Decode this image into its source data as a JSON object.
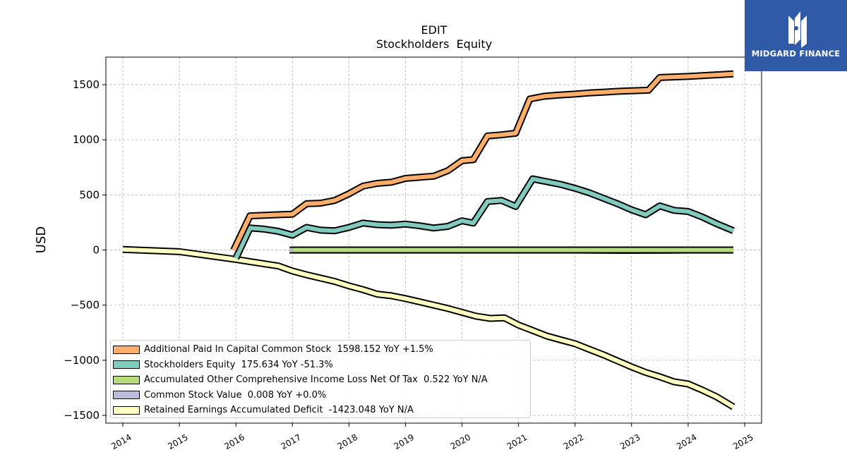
{
  "logo": {
    "text": "MIDGARD FINANCE",
    "color": "#2f5aa8"
  },
  "chart_data": {
    "type": "line",
    "title": "EDIT",
    "subtitle": "Stockholders  Equity",
    "xlabel": "",
    "ylabel": "USD",
    "xlim": [
      2013.7,
      2025.3
    ],
    "ylim": [
      -1570,
      1750
    ],
    "grid": true,
    "legend_position": "lower-left",
    "x_ticks": [
      "2014",
      "2015",
      "2016",
      "2017",
      "2018",
      "2019",
      "2020",
      "2021",
      "2022",
      "2023",
      "2024",
      "2025"
    ],
    "y_ticks": [
      -1500,
      -1000,
      -500,
      0,
      500,
      1000,
      1500
    ],
    "y_tick_labels": [
      "−1500",
      "−1000",
      "−500",
      "0",
      "500",
      "1000",
      "1500"
    ],
    "series": [
      {
        "name": "Additional Paid In Capital Common Stock",
        "legend_label": "Additional Paid In Capital Common Stock  1598.152 YoY +1.5%",
        "color": "#fdae6b",
        "x": [
          2015.96,
          2016.25,
          2016.75,
          2017.0,
          2017.25,
          2017.5,
          2017.75,
          2018.0,
          2018.25,
          2018.5,
          2018.75,
          2019.0,
          2019.25,
          2019.5,
          2019.75,
          2020.0,
          2020.2,
          2020.45,
          2020.7,
          2020.95,
          2021.2,
          2021.45,
          2021.7,
          2022.0,
          2022.25,
          2022.5,
          2022.75,
          2023.0,
          2023.3,
          2023.5,
          2023.75,
          2024.0,
          2024.25,
          2024.8
        ],
        "values": [
          -2,
          310,
          320,
          325,
          420,
          425,
          450,
          510,
          580,
          605,
          615,
          650,
          660,
          670,
          720,
          810,
          820,
          1035,
          1045,
          1060,
          1370,
          1395,
          1405,
          1415,
          1425,
          1432,
          1440,
          1445,
          1450,
          1565,
          1570,
          1575,
          1582,
          1598
        ]
      },
      {
        "name": "Stockholders Equity",
        "legend_label": "Stockholders Equity  175.634 YoY -51.3%",
        "color": "#80cbbd",
        "x": [
          2016.0,
          2016.25,
          2016.5,
          2016.75,
          2017.0,
          2017.25,
          2017.5,
          2017.75,
          2018.0,
          2018.25,
          2018.5,
          2018.75,
          2019.0,
          2019.25,
          2019.5,
          2019.75,
          2020.0,
          2020.2,
          2020.45,
          2020.7,
          2020.95,
          2021.25,
          2021.5,
          2021.75,
          2022.0,
          2022.25,
          2022.5,
          2022.75,
          2023.0,
          2023.25,
          2023.5,
          2023.75,
          2024.0,
          2024.25,
          2024.5,
          2024.8
        ],
        "values": [
          -75,
          200,
          190,
          170,
          135,
          205,
          180,
          175,
          205,
          245,
          230,
          225,
          235,
          220,
          200,
          215,
          265,
          245,
          440,
          450,
          395,
          645,
          620,
          595,
          560,
          520,
          470,
          420,
          365,
          320,
          400,
          360,
          350,
          300,
          240,
          176
        ]
      },
      {
        "name": "Accumulated Other Comprehensive Income Loss Net Of Tax",
        "legend_label": "Accumulated Other Comprehensive Income Loss Net Of Tax  0.522 YoY N/A",
        "color": "#b7dc7d",
        "x": [
          2017.0,
          2018.0,
          2019.0,
          2020.0,
          2021.0,
          2022.0,
          2023.0,
          2024.0,
          2024.8
        ],
        "values": [
          0.5,
          0.5,
          0.5,
          0.5,
          0.5,
          0.5,
          0.5,
          0.5,
          0.5
        ]
      },
      {
        "name": "Common Stock Value",
        "legend_label": "Common Stock Value  0.008 YoY +0.0%",
        "color": "#bcbddc",
        "x": [
          2016.95,
          2018.0,
          2019.0,
          2020.0,
          2021.0,
          2022.0,
          2022.75,
          2023.5,
          2024.0,
          2024.8
        ],
        "values": [
          0,
          0,
          0,
          0,
          0,
          0,
          -3,
          -2,
          0,
          0
        ]
      },
      {
        "name": "Retained Earnings Accumulated Deficit",
        "legend_label": "Retained Earnings Accumulated Deficit  -1423.048 YoY N/A",
        "color": "#ffffbf",
        "x": [
          2014.0,
          2015.0,
          2016.0,
          2016.25,
          2016.5,
          2016.75,
          2017.0,
          2017.25,
          2017.5,
          2017.75,
          2018.0,
          2018.25,
          2018.5,
          2018.75,
          2019.0,
          2019.25,
          2019.5,
          2019.75,
          2020.0,
          2020.25,
          2020.5,
          2020.75,
          2021.0,
          2021.25,
          2021.5,
          2021.75,
          2022.0,
          2022.25,
          2022.5,
          2022.75,
          2023.0,
          2023.25,
          2023.5,
          2023.75,
          2024.0,
          2024.25,
          2024.5,
          2024.8
        ],
        "values": [
          5,
          -15,
          -85,
          -105,
          -125,
          -145,
          -190,
          -225,
          -255,
          -285,
          -325,
          -360,
          -400,
          -415,
          -440,
          -470,
          -500,
          -530,
          -565,
          -600,
          -620,
          -615,
          -680,
          -730,
          -780,
          -815,
          -850,
          -900,
          -950,
          -1005,
          -1060,
          -1110,
          -1150,
          -1195,
          -1215,
          -1270,
          -1330,
          -1423
        ]
      }
    ]
  }
}
